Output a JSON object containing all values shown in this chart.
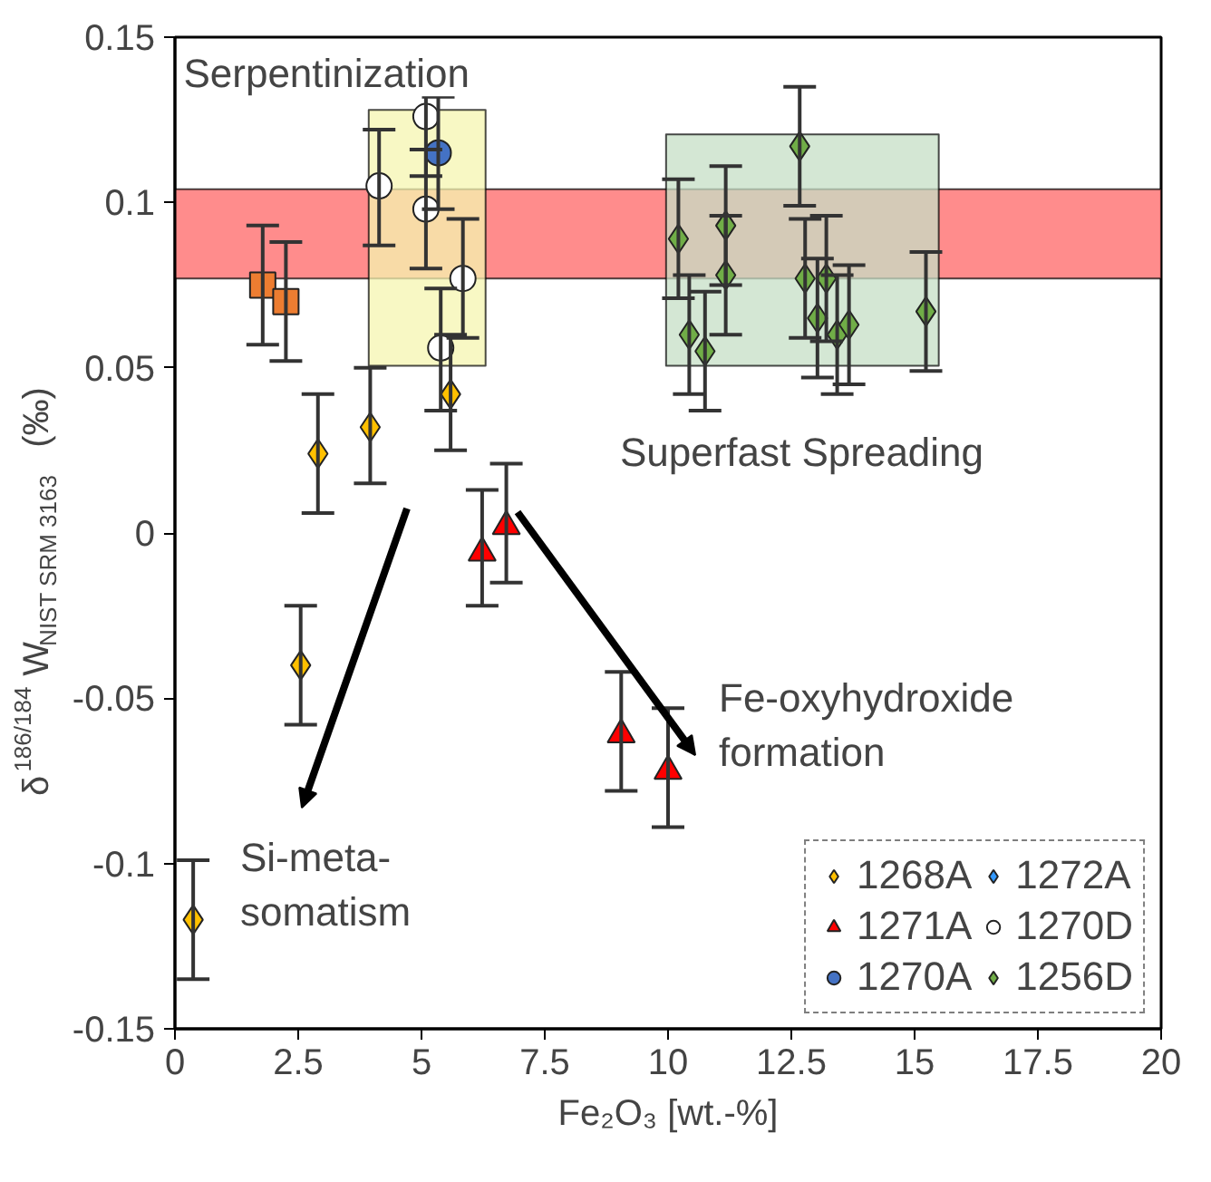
{
  "chart_data": {
    "type": "scatter",
    "xlabel": "Fe₂O₃ [wt.-%]",
    "ylabel": "δ$^{186/184}$W$_{NIST SRM 3163}$ (‰)",
    "xlim": [
      0,
      20
    ],
    "ylim": [
      -0.15,
      0.15
    ],
    "xticks": [
      0,
      2.5,
      5,
      7.5,
      10,
      12.5,
      15,
      17.5,
      20
    ],
    "yticks": [
      -0.15,
      -0.1,
      -0.05,
      0,
      0.05,
      0.1,
      0.15
    ],
    "grid": false,
    "legend": "bottom right",
    "bands": [
      {
        "axis": "y",
        "from": 0.077,
        "to": 0.104,
        "color": "#ff8080"
      }
    ],
    "annotations": [
      {
        "text": "Serpentinization",
        "x": 5.1,
        "y": 0.128
      },
      {
        "text": "Superfast Spreading",
        "x": 12.7,
        "y": 0.0506
      },
      "Si-meta-\nsomatism",
      "Fe-oxyhydroxide\nformation"
    ],
    "series": [
      {
        "type": "area",
        "color": "#f5f5b0",
        "x": [
          3.93,
          6.3,
          6.3,
          3.93,
          3.93
        ],
        "values": [
          0.0506,
          0.0506,
          0.128,
          0.128,
          0.0506
        ]
      },
      {
        "type": "area",
        "color": "#c5dfc5",
        "x": [
          9.96,
          15.49,
          15.49,
          9.96,
          9.96
        ],
        "values": [
          0.0506,
          0.0506,
          0.1206,
          0.1206,
          0.0506
        ]
      },
      {
        "name": "1268A",
        "color": "#ffc000",
        "marker": "diamond",
        "x": [
          2.9,
          3.96,
          5.59,
          2.55,
          0.37
        ],
        "values": [
          0.024,
          0.032,
          0.042,
          -0.04,
          -0.117
        ],
        "errors": [
          0.018,
          [
            0.015,
            0.05
          ],
          [
            0.025,
            0.06
          ],
          [
            -0.058,
            -0.022
          ],
          [
            -0.135,
            -0.099
          ]
        ]
      },
      {
        "name": "1271A",
        "color": "#ff0000",
        "marker": "triangle",
        "x": [
          6.23,
          6.72,
          9.05,
          10.0
        ],
        "values": [
          -0.006,
          0.002,
          -0.061,
          -0.072
        ],
        "errors": [
          [
            -0.022,
            0.013
          ],
          [
            -0.015,
            0.021
          ],
          [
            -0.078,
            -0.042
          ],
          [
            -0.089,
            -0.053
          ]
        ]
      },
      {
        "name": "1270A",
        "color": "#4472c4",
        "marker": "circle",
        "x": [
          5.34
        ],
        "values": [
          0.115
        ],
        "errors": [
          0.017
        ]
      },
      {
        "name": "1272A",
        "color": "#3399ff",
        "marker": "diamond"
      },
      {
        "name": "1270D",
        "color": "#ffffff",
        "marker": "circle",
        "x": [
          5.09,
          4.14,
          5.09,
          5.84,
          5.39
        ],
        "values": [
          0.126,
          0.105,
          0.098,
          0.077,
          0.056
        ],
        "errors": [
          0.018,
          [
            0.087,
            0.122
          ],
          [
            0.08,
            0.116
          ],
          [
            0.059,
            0.095
          ],
          [
            0.037,
            0.074
          ]
        ]
      },
      {
        "name": "1256D",
        "color": "#70ad47",
        "marker": "diamond",
        "x": [
          10.21,
          10.43,
          10.75,
          11.17,
          11.17,
          12.67,
          12.78,
          13.03,
          13.21,
          13.43,
          13.67,
          15.23
        ],
        "values": [
          0.089,
          0.06,
          0.055,
          0.093,
          0.078,
          0.117,
          0.077,
          0.065,
          0.077,
          0.06,
          0.063,
          0.067
        ],
        "errors": [
          0.018,
          0.018,
          0.018,
          0.018,
          0.018,
          0.018,
          0.018,
          0.018,
          0.019,
          0.018,
          0.018,
          0.018
        ]
      },
      {
        "color": "#ed7d31",
        "marker": "square",
        "x": [
          1.78,
          2.25
        ],
        "values": [
          0.075,
          0.07
        ],
        "errors": [
          0.018,
          0.018
        ]
      }
    ]
  }
}
